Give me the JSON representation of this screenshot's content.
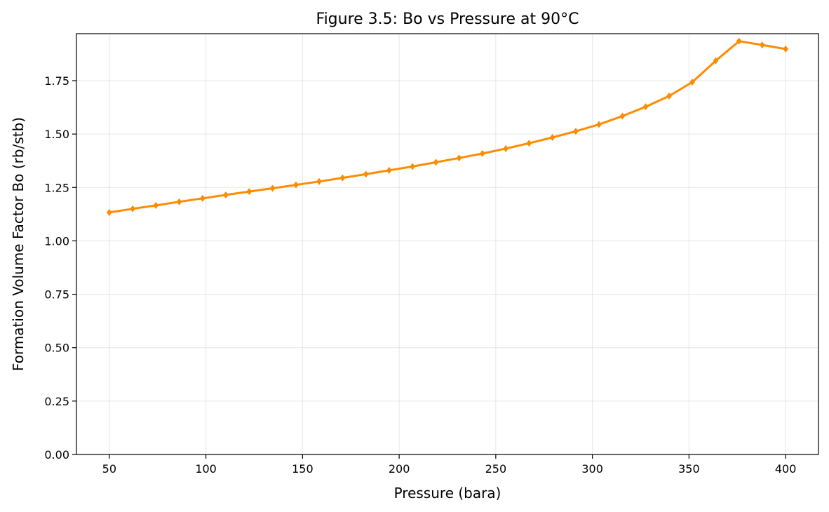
{
  "chart_data": {
    "type": "line",
    "title": "Figure 3.5: Bo vs Pressure at 90°C",
    "xlabel": "Pressure (bara)",
    "ylabel": "Formation Volume Factor Bo (rb/stb)",
    "xlim": [
      33,
      417
    ],
    "ylim": [
      0,
      1.97
    ],
    "xticks": [
      50,
      100,
      150,
      200,
      250,
      300,
      350,
      400
    ],
    "yticks": [
      0.0,
      0.25,
      0.5,
      0.75,
      1.0,
      1.25,
      1.5,
      1.75
    ],
    "xtick_labels": [
      "50",
      "100",
      "150",
      "200",
      "250",
      "300",
      "350",
      "400"
    ],
    "ytick_labels": [
      "0.00",
      "0.25",
      "0.50",
      "0.75",
      "1.00",
      "1.25",
      "1.50",
      "1.75"
    ],
    "grid": true,
    "marker": "diamond",
    "series": [
      {
        "color": "#ff8c00",
        "x": [
          50.0,
          62.1,
          74.1,
          86.2,
          98.3,
          110.3,
          122.4,
          134.5,
          146.6,
          158.6,
          170.7,
          182.8,
          194.8,
          206.9,
          219.0,
          231.0,
          243.1,
          255.2,
          267.2,
          279.3,
          291.4,
          303.4,
          315.5,
          327.6,
          339.7,
          351.7,
          363.8,
          375.9,
          387.9,
          400.0
        ],
        "values": [
          1.133,
          1.15,
          1.166,
          1.183,
          1.199,
          1.215,
          1.231,
          1.246,
          1.262,
          1.278,
          1.295,
          1.312,
          1.33,
          1.348,
          1.368,
          1.388,
          1.409,
          1.432,
          1.457,
          1.484,
          1.513,
          1.545,
          1.584,
          1.628,
          1.678,
          1.743,
          1.843,
          1.935,
          1.917,
          1.898
        ]
      }
    ]
  }
}
